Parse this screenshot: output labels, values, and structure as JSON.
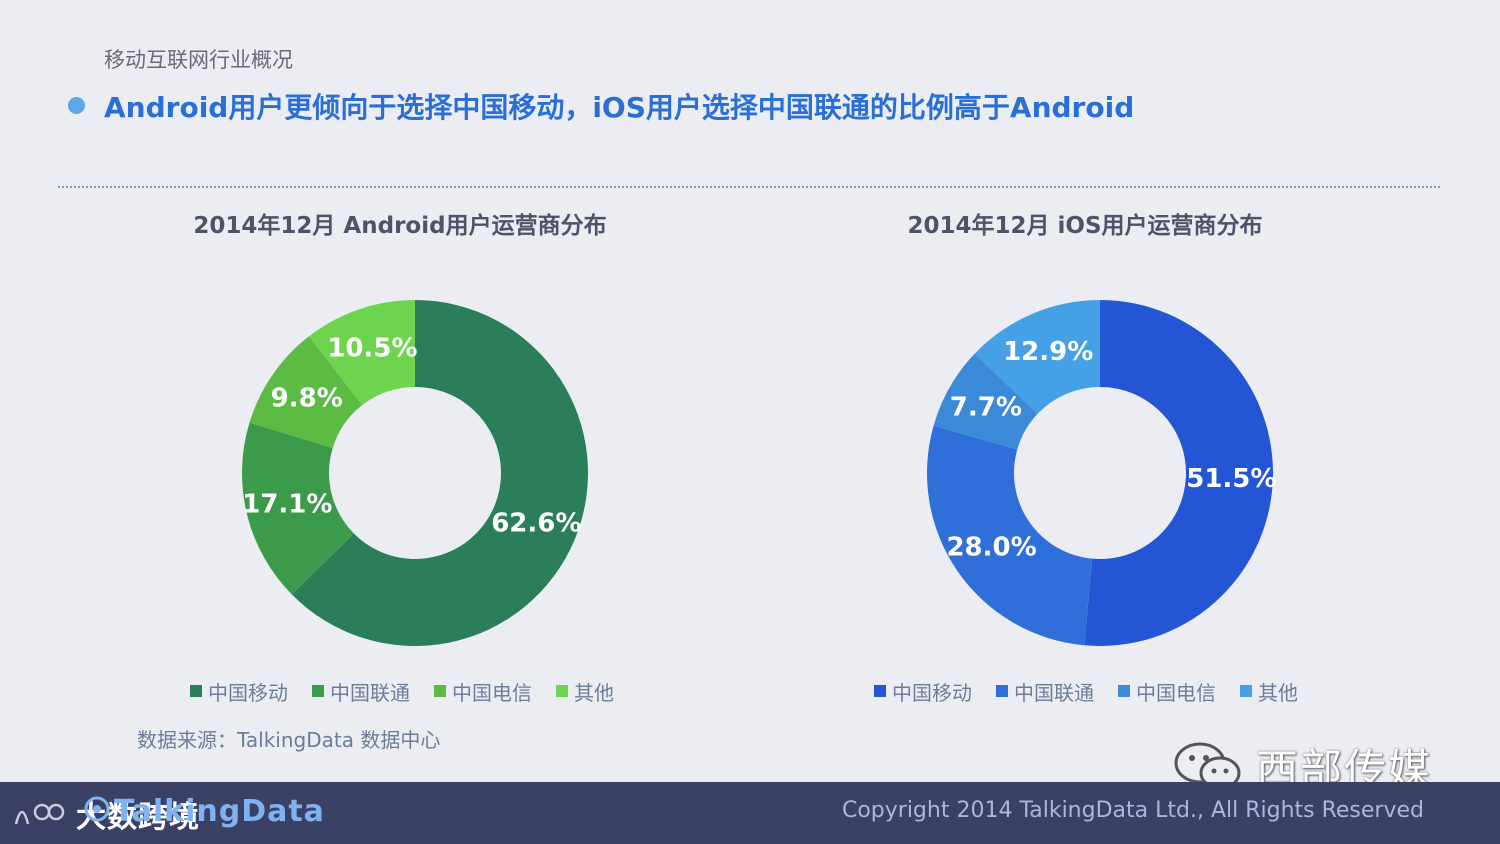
{
  "header": {
    "breadcrumb": "移动互联网行业概况",
    "headline": "Android用户更倾向于选择中国移动，iOS用户选择中国联通的比例高于Android"
  },
  "chart_data": [
    {
      "type": "pie",
      "title": "2014年12月 Android用户运营商分布",
      "categories": [
        "中国移动",
        "中国联通",
        "中国电信",
        "其他"
      ],
      "values": [
        62.6,
        17.1,
        9.8,
        10.5
      ],
      "labels": [
        "62.6%",
        "17.1%",
        "9.8%",
        "10.5%"
      ],
      "colors": [
        "#2a7f5a",
        "#3c9b4b",
        "#5cbb43",
        "#6dd54d"
      ],
      "legend_position": "bottom",
      "style": "donut"
    },
    {
      "type": "pie",
      "title": "2014年12月 iOS用户运营商分布",
      "categories": [
        "中国移动",
        "中国联通",
        "中国电信",
        "其他"
      ],
      "values": [
        51.5,
        28.0,
        7.7,
        12.9
      ],
      "labels": [
        "51.5%",
        "28.0%",
        "7.7%",
        "12.9%"
      ],
      "colors": [
        "#2455d4",
        "#2e6fda",
        "#3b8ad8",
        "#46a0e6"
      ],
      "legend_position": "bottom",
      "style": "donut"
    }
  ],
  "source": "数据来源：TalkingData 数据中心",
  "watermark": {
    "text": "西部传媒",
    "icon": "wechat-icon"
  },
  "footer": {
    "logo_text": "大数跨境",
    "brand": "TalkingData",
    "copyright": "Copyright 2014 TalkingData Ltd., All Rights Reserved"
  }
}
